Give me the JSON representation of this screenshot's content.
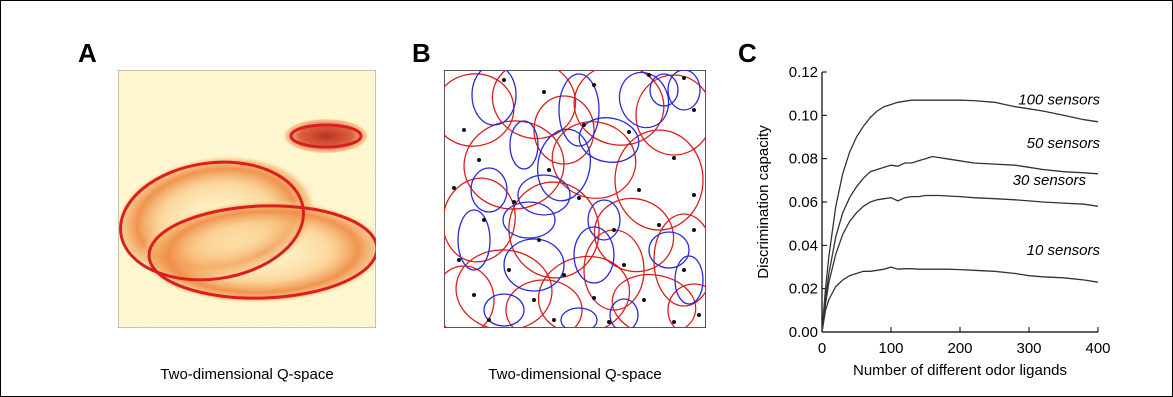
{
  "panels": {
    "a": {
      "letter": "A",
      "caption": "Two-dimensional Q-space"
    },
    "b": {
      "letter": "B",
      "caption": "Two-dimensional Q-space"
    },
    "c": {
      "letter": "C"
    }
  },
  "colors": {
    "heat_background": "#fffbd6",
    "heat_density": "#f5a45a",
    "heat_peak": "#c8382a",
    "red_ellipse": "#d91f1f",
    "blue_ellipse": "#2a2ad4",
    "black_dot": "#111111",
    "curve": "#333333"
  },
  "chart_data": {
    "type": "line",
    "xlabel": "Number of different odor ligands",
    "ylabel": "Discrimination capacity",
    "xlim": [
      0,
      400
    ],
    "ylim": [
      0,
      0.12
    ],
    "x_ticks": [
      0,
      100,
      200,
      300,
      400
    ],
    "x_tick_labels": [
      "0",
      "100",
      "200",
      "300",
      "400"
    ],
    "y_ticks": [
      0.0,
      0.02,
      0.04,
      0.06,
      0.08,
      0.1,
      0.12
    ],
    "y_tick_labels": [
      "0.00",
      "0.02",
      "0.04",
      "0.06",
      "0.08",
      "0.10",
      "0.12"
    ],
    "grid": false,
    "x": [
      0,
      5,
      10,
      20,
      30,
      40,
      50,
      60,
      70,
      80,
      90,
      100,
      110,
      120,
      130,
      140,
      150,
      160,
      170,
      180,
      200,
      220,
      250,
      280,
      300,
      320,
      350,
      380,
      400
    ],
    "series": [
      {
        "name": "100 sensors",
        "values": [
          0.0,
          0.02,
          0.035,
          0.058,
          0.073,
          0.083,
          0.09,
          0.095,
          0.099,
          0.102,
          0.104,
          0.105,
          0.106,
          0.1065,
          0.107,
          0.107,
          0.107,
          0.107,
          0.107,
          0.107,
          0.107,
          0.1068,
          0.106,
          0.104,
          0.103,
          0.102,
          0.1,
          0.098,
          0.097
        ]
      },
      {
        "name": "50 sensors",
        "values": [
          0.0,
          0.015,
          0.027,
          0.044,
          0.055,
          0.062,
          0.067,
          0.071,
          0.074,
          0.075,
          0.076,
          0.077,
          0.0765,
          0.078,
          0.078,
          0.079,
          0.08,
          0.081,
          0.0805,
          0.08,
          0.079,
          0.078,
          0.0775,
          0.077,
          0.076,
          0.075,
          0.074,
          0.0735,
          0.073
        ]
      },
      {
        "name": "30 sensors",
        "values": [
          0.0,
          0.013,
          0.023,
          0.036,
          0.045,
          0.051,
          0.055,
          0.058,
          0.06,
          0.061,
          0.0615,
          0.062,
          0.0605,
          0.062,
          0.0625,
          0.0625,
          0.063,
          0.063,
          0.063,
          0.0628,
          0.0625,
          0.062,
          0.0615,
          0.061,
          0.0605,
          0.06,
          0.0595,
          0.059,
          0.058
        ]
      },
      {
        "name": "10 sensors",
        "values": [
          0.0,
          0.01,
          0.015,
          0.021,
          0.024,
          0.026,
          0.027,
          0.028,
          0.028,
          0.0285,
          0.029,
          0.03,
          0.029,
          0.0292,
          0.0292,
          0.029,
          0.029,
          0.029,
          0.029,
          0.029,
          0.0288,
          0.0285,
          0.028,
          0.027,
          0.026,
          0.0255,
          0.025,
          0.024,
          0.023
        ]
      }
    ]
  }
}
